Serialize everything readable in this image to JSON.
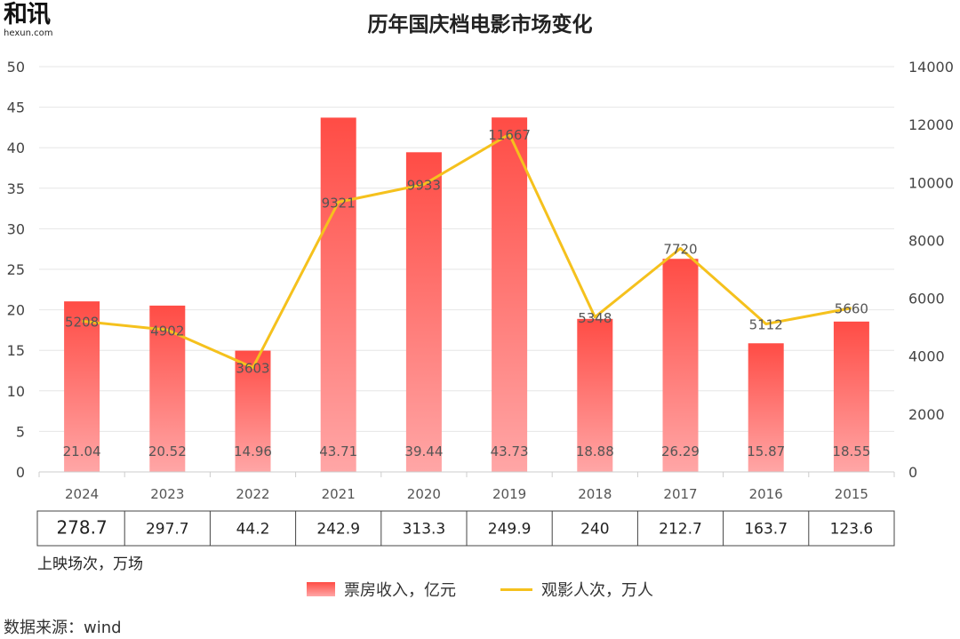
{
  "logo": {
    "main": "和讯",
    "sub": "hexun.com"
  },
  "title": "历年国庆档电影市场变化",
  "source": "数据来源：wind",
  "colors": {
    "bar_top": "#ff4c45",
    "bar_bottom": "#ffa6a6",
    "line": "#f5c11d",
    "grid": "#e6e6e6"
  },
  "chart_data": {
    "type": "bar+line",
    "categories": [
      "2024",
      "2023",
      "2022",
      "2021",
      "2020",
      "2019",
      "2018",
      "2017",
      "2016",
      "2015"
    ],
    "series": [
      {
        "name": "票房收入，亿元",
        "type": "bar",
        "axis": "left",
        "values": [
          21.04,
          20.52,
          14.96,
          43.71,
          39.44,
          43.73,
          18.88,
          26.29,
          15.87,
          18.55
        ],
        "labels": [
          "21.04",
          "20.52",
          "14.96",
          "43.71",
          "39.44",
          "43.73",
          "18.88",
          "26.29",
          "15.87",
          "18.55"
        ]
      },
      {
        "name": "观影人次，万人",
        "type": "line",
        "axis": "right",
        "values": [
          5208,
          4902,
          3603,
          9321,
          9933,
          11667,
          5348,
          7720,
          5112,
          5660
        ],
        "labels": [
          "5208",
          "4902",
          "3603",
          "9321",
          "9933",
          "11667",
          "5348",
          "7720",
          "5112",
          "5660"
        ]
      }
    ],
    "left_axis": {
      "ylim": [
        0,
        50
      ],
      "ticks": [
        "0",
        "5",
        "10",
        "15",
        "20",
        "25",
        "30",
        "35",
        "40",
        "45",
        "50"
      ]
    },
    "right_axis": {
      "ylim": [
        0,
        14000
      ],
      "ticks": [
        "0",
        "2000",
        "4000",
        "6000",
        "8000",
        "10000",
        "12000",
        "14000"
      ]
    },
    "grid": true,
    "legend_position": "bottom",
    "table": {
      "caption": "上映场次，万场",
      "values": [
        "278.7",
        "297.7",
        "44.2",
        "242.9",
        "313.3",
        "249.9",
        "240",
        "212.7",
        "163.7",
        "123.6"
      ]
    }
  }
}
